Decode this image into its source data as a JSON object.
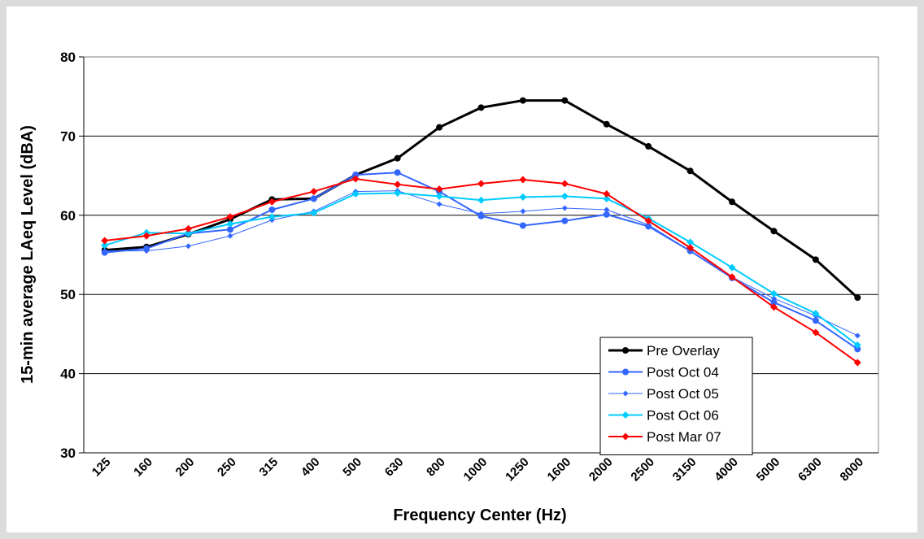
{
  "chart_data": {
    "type": "line",
    "x_label": "Frequency Center (Hz)",
    "y_label": "15-min average LAeq Level (dBA)",
    "categories": [
      "125",
      "160",
      "200",
      "250",
      "315",
      "400",
      "500",
      "630",
      "800",
      "1000",
      "1250",
      "1600",
      "2000",
      "2500",
      "3150",
      "4000",
      "5000",
      "6300",
      "8000"
    ],
    "ylim": [
      30,
      80
    ],
    "yticks": [
      30,
      40,
      50,
      60,
      70,
      80
    ],
    "grid": true,
    "legend": "lower right",
    "series": [
      {
        "name": "Pre Overlay",
        "color": "#000000",
        "marker": "circle",
        "values": [
          55.6,
          56.0,
          57.6,
          59.5,
          62.0,
          62.1,
          65.1,
          67.2,
          71.1,
          73.6,
          74.5,
          74.5,
          71.5,
          68.7,
          65.6,
          61.7,
          58.0,
          54.4,
          49.6
        ]
      },
      {
        "name": "Post Oct 04",
        "color": "#3366ff",
        "marker": "circle",
        "values": [
          55.3,
          55.8,
          57.7,
          58.2,
          60.7,
          62.1,
          65.1,
          65.4,
          63.0,
          59.9,
          58.7,
          59.3,
          60.1,
          58.6,
          55.5,
          52.1,
          49.0,
          46.7,
          43.1
        ]
      },
      {
        "name": "Post Oct 05",
        "color": "#3366ff",
        "marker": "diamond",
        "values": [
          55.5,
          55.5,
          56.1,
          57.4,
          59.4,
          60.5,
          63.0,
          63.1,
          61.4,
          60.2,
          60.5,
          60.9,
          60.7,
          58.8,
          55.5,
          52.2,
          49.5,
          47.3,
          44.8
        ]
      },
      {
        "name": "Post Oct 06",
        "color": "#00ccff",
        "marker": "diamond",
        "values": [
          56.2,
          57.8,
          57.7,
          58.9,
          59.8,
          60.3,
          62.7,
          62.8,
          62.4,
          61.9,
          62.3,
          62.4,
          62.1,
          59.6,
          56.6,
          53.4,
          50.1,
          47.6,
          43.6
        ]
      },
      {
        "name": "Post Mar 07",
        "color": "#ff0000",
        "marker": "diamond",
        "values": [
          56.8,
          57.4,
          58.3,
          59.8,
          61.7,
          63.0,
          64.6,
          63.9,
          63.3,
          64.0,
          64.5,
          64.0,
          62.7,
          59.3,
          55.9,
          52.2,
          48.4,
          45.2,
          41.4
        ]
      }
    ]
  }
}
